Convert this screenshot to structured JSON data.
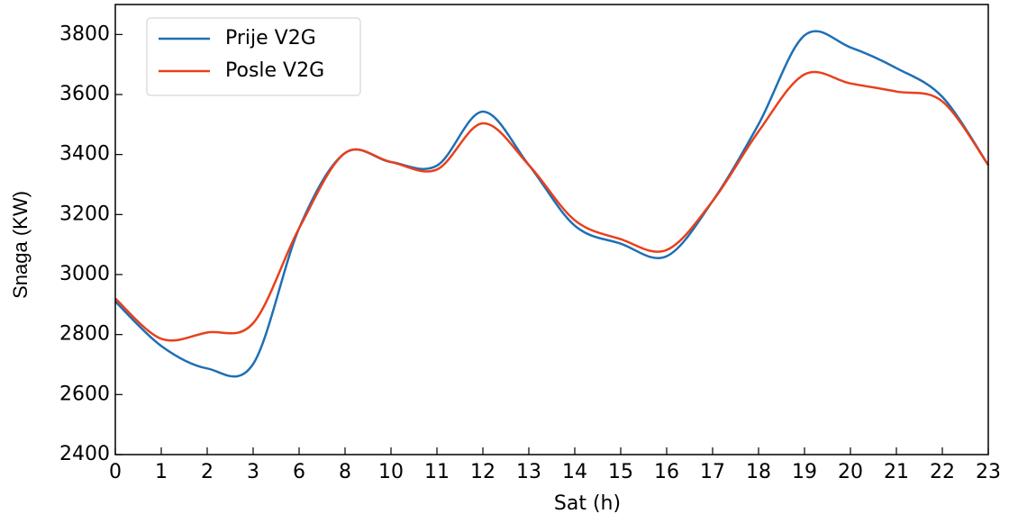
{
  "chart_data": {
    "type": "line",
    "x_label": "Sat (h)",
    "y_label": "Snaga (KW)",
    "categories": [
      "0",
      "1",
      "2",
      "3",
      "6",
      "8",
      "10",
      "11",
      "12",
      "13",
      "14",
      "15",
      "16",
      "17",
      "18",
      "19",
      "20",
      "21",
      "22",
      "23"
    ],
    "series": [
      {
        "name": "Prije V2G",
        "color": "#1f6fb4",
        "values": [
          2910,
          2762,
          2687,
          2702,
          3154,
          3405,
          3375,
          3363,
          3543,
          3365,
          3163,
          3103,
          3061,
          3245,
          3501,
          3797,
          3757,
          3688,
          3592,
          3365
        ]
      },
      {
        "name": "Posle V2G",
        "color": "#e8401c",
        "values": [
          2920,
          2786,
          2807,
          2838,
          3154,
          3405,
          3375,
          3350,
          3504,
          3365,
          3181,
          3118,
          3082,
          3245,
          3477,
          3667,
          3637,
          3610,
          3577,
          3365
        ]
      }
    ],
    "ylim": [
      2400,
      3900
    ],
    "yticks": [
      2400,
      2600,
      2800,
      3000,
      3200,
      3400,
      3600,
      3800
    ],
    "legend": "upper left"
  }
}
